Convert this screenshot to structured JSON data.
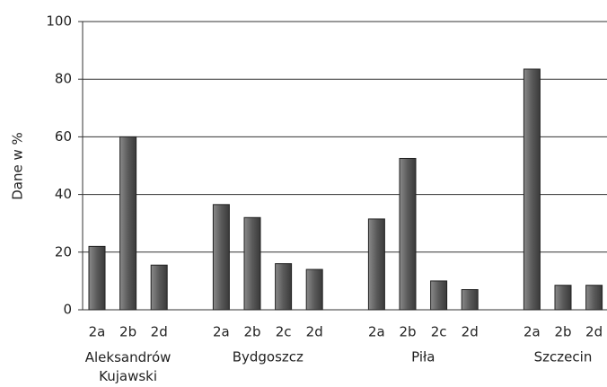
{
  "chart_data": {
    "type": "bar",
    "y_label": "Dane w %",
    "color": "#5a5a5a",
    "ylim": [
      0,
      100
    ],
    "yticks": [
      0,
      20,
      40,
      60,
      80,
      100
    ],
    "grid": true,
    "groups": [
      {
        "name": "Aleksandrów Kujawski",
        "categories": [
          "2a",
          "2b",
          "2d"
        ],
        "values": [
          22,
          60,
          15.5
        ]
      },
      {
        "name": "Bydgoszcz",
        "categories": [
          "2a",
          "2b",
          "2c",
          "2d"
        ],
        "values": [
          36.5,
          32,
          16,
          14
        ]
      },
      {
        "name": "Piła",
        "categories": [
          "2a",
          "2b",
          "2c",
          "2d"
        ],
        "values": [
          31.5,
          52.5,
          10,
          7
        ]
      },
      {
        "name": "Szczecin",
        "categories": [
          "2a",
          "2b",
          "2d"
        ],
        "values": [
          83.5,
          8.5,
          8.5
        ]
      }
    ]
  }
}
